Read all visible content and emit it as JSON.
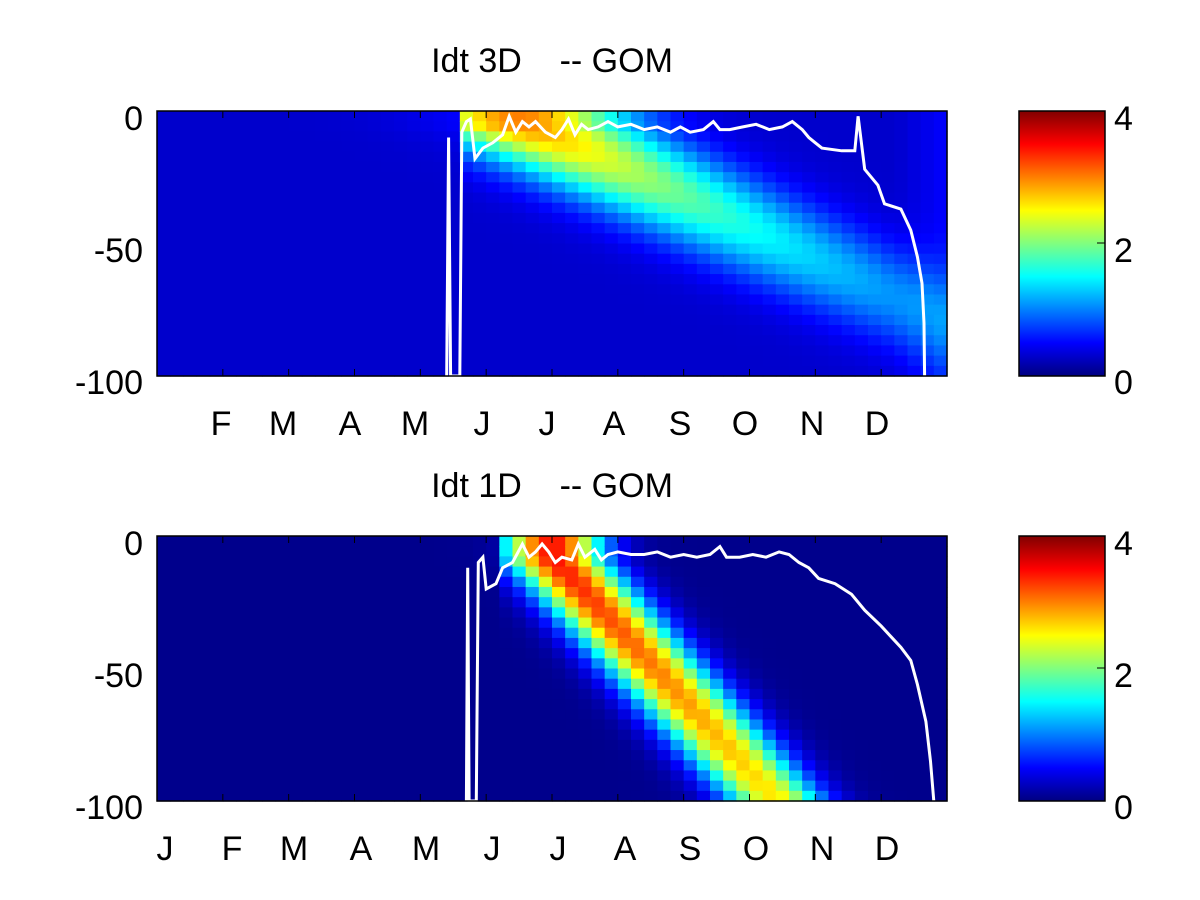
{
  "chart_data": [
    {
      "type": "heatmap",
      "title": "Idt 3D    -- GOM",
      "y_ticks": [
        "0",
        "-50",
        "-100"
      ],
      "y_range": [
        -100,
        0
      ],
      "x_ticks": [
        "F",
        "M",
        "A",
        "M",
        "J",
        "J",
        "A",
        "S",
        "O",
        "N",
        "D"
      ],
      "x_months_index": [
        2,
        3,
        4,
        5,
        6,
        7,
        8,
        9,
        10,
        11,
        12
      ],
      "colorbar": {
        "ticks": [
          "4",
          "2",
          "0"
        ],
        "range": [
          0,
          4
        ],
        "colormap": "jet"
      },
      "bloom": {
        "start_month": 5.5,
        "start_depth": -5,
        "slope_depth_per_month": -12,
        "peak": 2.7,
        "width_months": 1.6,
        "depth_spread": 0.9,
        "background": 0.3,
        "decay_month": 11.2
      },
      "line_series": {
        "name": "",
        "color": "#ffffff",
        "points": [
          [
            4.4,
            -100
          ],
          [
            4.43,
            -10
          ],
          [
            4.46,
            -100
          ],
          [
            4.6,
            -100
          ],
          [
            4.63,
            -8
          ],
          [
            4.7,
            -4
          ],
          [
            4.76,
            -3
          ],
          [
            4.83,
            -18
          ],
          [
            4.95,
            -14
          ],
          [
            5.1,
            -12
          ],
          [
            5.25,
            -9
          ],
          [
            5.35,
            -2
          ],
          [
            5.45,
            -8
          ],
          [
            5.55,
            -4
          ],
          [
            5.65,
            -6
          ],
          [
            5.75,
            -4
          ],
          [
            5.9,
            -8
          ],
          [
            6.05,
            -10
          ],
          [
            6.15,
            -7
          ],
          [
            6.25,
            -3
          ],
          [
            6.35,
            -9
          ],
          [
            6.45,
            -5
          ],
          [
            6.55,
            -7
          ],
          [
            6.7,
            -6
          ],
          [
            6.85,
            -4
          ],
          [
            7.0,
            -6
          ],
          [
            7.2,
            -5
          ],
          [
            7.4,
            -7
          ],
          [
            7.6,
            -6
          ],
          [
            7.8,
            -8
          ],
          [
            7.95,
            -6
          ],
          [
            8.1,
            -8
          ],
          [
            8.3,
            -7
          ],
          [
            8.45,
            -4
          ],
          [
            8.55,
            -7
          ],
          [
            8.7,
            -7
          ],
          [
            8.9,
            -6
          ],
          [
            9.1,
            -5
          ],
          [
            9.3,
            -7
          ],
          [
            9.5,
            -6
          ],
          [
            9.65,
            -4
          ],
          [
            9.8,
            -7
          ],
          [
            9.9,
            -10
          ],
          [
            10.0,
            -12
          ],
          [
            10.1,
            -14
          ],
          [
            10.4,
            -15
          ],
          [
            10.6,
            -15
          ],
          [
            10.65,
            -2
          ],
          [
            10.75,
            -22
          ],
          [
            10.95,
            -28
          ],
          [
            11.05,
            -35
          ],
          [
            11.3,
            -37
          ],
          [
            11.45,
            -45
          ],
          [
            11.55,
            -55
          ],
          [
            11.62,
            -65
          ],
          [
            11.65,
            -80
          ],
          [
            11.66,
            -100
          ]
        ]
      }
    },
    {
      "type": "heatmap",
      "title": "Idt 1D    -- GOM",
      "y_ticks": [
        "0",
        "-50",
        "-100"
      ],
      "y_range": [
        -100,
        0
      ],
      "x_ticks": [
        "J",
        "F",
        "M",
        "A",
        "M",
        "J",
        "J",
        "A",
        "S",
        "O",
        "N",
        "D"
      ],
      "x_months_index": [
        1,
        2,
        3,
        4,
        5,
        6,
        7,
        8,
        9,
        10,
        11,
        12
      ],
      "colorbar": {
        "ticks": [
          "4",
          "2",
          "0"
        ],
        "range": [
          0,
          4
        ],
        "colormap": "jet"
      },
      "bloom": {
        "start_month": 6.0,
        "start_depth": -8,
        "slope_depth_per_month": -27,
        "peak": 3.4,
        "width_months": 0.75,
        "depth_spread": 0.35,
        "background": 0.05,
        "decay_month": 12.2
      },
      "line_series": {
        "name": "",
        "color": "#ffffff",
        "points": [
          [
            4.7,
            -100
          ],
          [
            4.72,
            -12
          ],
          [
            4.74,
            -100
          ],
          [
            4.85,
            -100
          ],
          [
            4.88,
            -10
          ],
          [
            4.95,
            -8
          ],
          [
            5.0,
            -20
          ],
          [
            5.15,
            -18
          ],
          [
            5.25,
            -12
          ],
          [
            5.4,
            -10
          ],
          [
            5.55,
            -3
          ],
          [
            5.65,
            -8
          ],
          [
            5.75,
            -6
          ],
          [
            5.85,
            -3
          ],
          [
            5.95,
            -6
          ],
          [
            6.05,
            -10
          ],
          [
            6.15,
            -8
          ],
          [
            6.3,
            -9
          ],
          [
            6.4,
            -3
          ],
          [
            6.5,
            -8
          ],
          [
            6.65,
            -5
          ],
          [
            6.75,
            -9
          ],
          [
            6.85,
            -7
          ],
          [
            7.0,
            -6
          ],
          [
            7.2,
            -7
          ],
          [
            7.4,
            -7
          ],
          [
            7.6,
            -6
          ],
          [
            7.8,
            -8
          ],
          [
            8.0,
            -7
          ],
          [
            8.2,
            -8
          ],
          [
            8.4,
            -7
          ],
          [
            8.55,
            -4
          ],
          [
            8.65,
            -8
          ],
          [
            8.85,
            -8
          ],
          [
            9.05,
            -7
          ],
          [
            9.25,
            -8
          ],
          [
            9.45,
            -6
          ],
          [
            9.6,
            -7
          ],
          [
            9.75,
            -10
          ],
          [
            9.9,
            -12
          ],
          [
            10.05,
            -16
          ],
          [
            10.3,
            -18
          ],
          [
            10.55,
            -22
          ],
          [
            10.75,
            -28
          ],
          [
            11.0,
            -34
          ],
          [
            11.15,
            -38
          ],
          [
            11.3,
            -42
          ],
          [
            11.45,
            -47
          ],
          [
            11.55,
            -56
          ],
          [
            11.68,
            -70
          ],
          [
            11.75,
            -85
          ],
          [
            11.8,
            -100
          ]
        ]
      }
    }
  ]
}
